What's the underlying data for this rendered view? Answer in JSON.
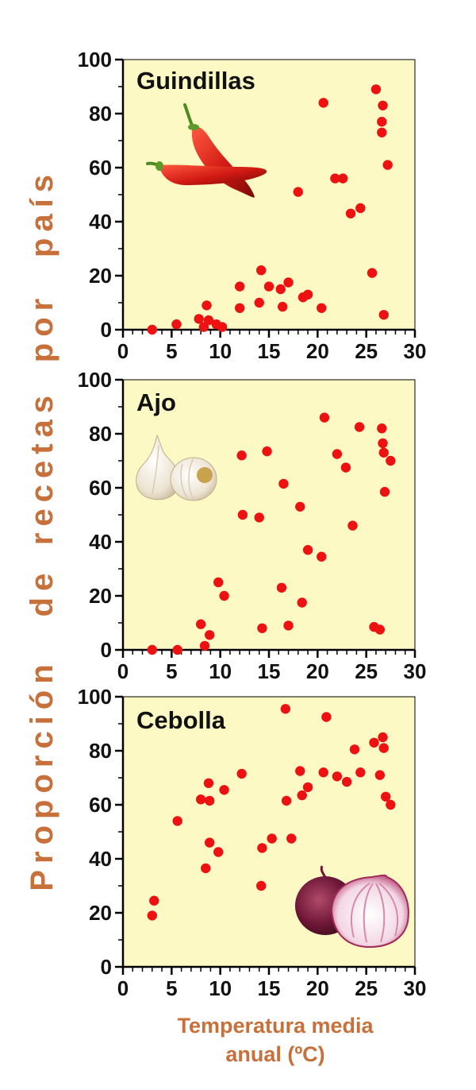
{
  "ylabel_words": [
    "Proporción",
    "de",
    "recetas",
    "por",
    "país"
  ],
  "xlabel_lines": [
    "Temperatura media",
    "anual (ºC)"
  ],
  "colors": {
    "panel_bg": "#fdf9c4",
    "point": "#ee1111",
    "axis_label": "#c8703a",
    "text": "#111111"
  },
  "chart_data": [
    {
      "type": "scatter",
      "title": "Guindillas",
      "icon": "chili-pepper-icon",
      "xlim": [
        0,
        30
      ],
      "ylim": [
        0,
        100
      ],
      "xticks": [
        0,
        5,
        10,
        15,
        20,
        25,
        30
      ],
      "yticks": [
        0,
        20,
        40,
        60,
        80,
        100
      ],
      "points": [
        [
          3,
          0
        ],
        [
          5.5,
          2
        ],
        [
          7.8,
          4
        ],
        [
          8.3,
          1
        ],
        [
          8.6,
          9
        ],
        [
          8.8,
          3.5
        ],
        [
          9.6,
          2
        ],
        [
          10.2,
          1
        ],
        [
          12,
          16
        ],
        [
          12,
          8
        ],
        [
          14,
          10
        ],
        [
          14.2,
          22
        ],
        [
          15,
          16
        ],
        [
          16.2,
          15
        ],
        [
          16.4,
          8.5
        ],
        [
          17,
          17.5
        ],
        [
          18.5,
          12
        ],
        [
          19,
          13
        ],
        [
          20.4,
          8
        ],
        [
          18,
          51
        ],
        [
          20.6,
          84
        ],
        [
          21.8,
          56
        ],
        [
          22.6,
          56
        ],
        [
          23.4,
          43
        ],
        [
          24.4,
          45
        ],
        [
          25.6,
          21
        ],
        [
          26,
          89
        ],
        [
          26.6,
          77
        ],
        [
          26.6,
          73
        ],
        [
          26.7,
          83
        ],
        [
          26.8,
          5.5
        ],
        [
          27.2,
          61
        ]
      ]
    },
    {
      "type": "scatter",
      "title": "Ajo",
      "icon": "garlic-icon",
      "xlim": [
        0,
        30
      ],
      "ylim": [
        0,
        100
      ],
      "xticks": [
        0,
        5,
        10,
        15,
        20,
        25,
        30
      ],
      "yticks": [
        0,
        20,
        40,
        60,
        80,
        100
      ],
      "points": [
        [
          3,
          0
        ],
        [
          5.6,
          0
        ],
        [
          8,
          9.5
        ],
        [
          8.4,
          1.5
        ],
        [
          8.9,
          5.5
        ],
        [
          9.8,
          25
        ],
        [
          10.4,
          20
        ],
        [
          12.2,
          72
        ],
        [
          12.3,
          50
        ],
        [
          14,
          49
        ],
        [
          14.3,
          8
        ],
        [
          14.8,
          73.5
        ],
        [
          16.3,
          23
        ],
        [
          16.5,
          61.5
        ],
        [
          17,
          9
        ],
        [
          18.2,
          53
        ],
        [
          18.4,
          17.5
        ],
        [
          19,
          37
        ],
        [
          20.4,
          34.5
        ],
        [
          20.7,
          86
        ],
        [
          22,
          72.5
        ],
        [
          22.9,
          67.5
        ],
        [
          23.6,
          46
        ],
        [
          24.3,
          82.5
        ],
        [
          25.8,
          8.5
        ],
        [
          26.4,
          7.5
        ],
        [
          26.6,
          82
        ],
        [
          26.7,
          76.5
        ],
        [
          26.8,
          73
        ],
        [
          26.9,
          58.5
        ],
        [
          27.5,
          70
        ]
      ]
    },
    {
      "type": "scatter",
      "title": "Cebolla",
      "icon": "onion-icon",
      "xlim": [
        0,
        30
      ],
      "ylim": [
        0,
        100
      ],
      "xticks": [
        0,
        5,
        10,
        15,
        20,
        25,
        30
      ],
      "yticks": [
        0,
        20,
        40,
        60,
        80,
        100
      ],
      "points": [
        [
          3,
          19
        ],
        [
          3.2,
          24.5
        ],
        [
          5.6,
          54
        ],
        [
          8,
          62
        ],
        [
          8.5,
          36.5
        ],
        [
          8.8,
          68
        ],
        [
          8.9,
          61.5
        ],
        [
          8.9,
          46
        ],
        [
          9.8,
          42.5
        ],
        [
          10.4,
          65.5
        ],
        [
          12.2,
          71.5
        ],
        [
          14.2,
          30
        ],
        [
          14.3,
          44
        ],
        [
          15.3,
          47.5
        ],
        [
          16.7,
          95.5
        ],
        [
          16.8,
          61.5
        ],
        [
          17.3,
          47.5
        ],
        [
          18.2,
          72.5
        ],
        [
          18.4,
          63.5
        ],
        [
          19,
          66.5
        ],
        [
          20.6,
          72
        ],
        [
          20.9,
          92.5
        ],
        [
          22,
          70.5
        ],
        [
          23,
          68.5
        ],
        [
          23.8,
          80.5
        ],
        [
          24.4,
          72
        ],
        [
          25.8,
          83
        ],
        [
          26.4,
          71
        ],
        [
          26.7,
          85
        ],
        [
          26.8,
          81
        ],
        [
          27,
          63
        ],
        [
          27.5,
          60
        ]
      ]
    }
  ]
}
